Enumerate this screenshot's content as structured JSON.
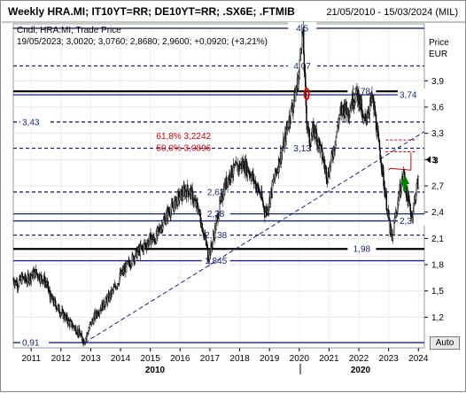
{
  "window": {
    "title": "Weekly HRA.MI; IT10YT=RR; DE10YT=RR; .SX6E; .FTMIB",
    "date_range": "21/05/2010 - 15/03/2024 (MIL)"
  },
  "legend": {
    "series_label": "Cndl; HRA.MI; Trade Price",
    "ohlc_readout": "19/05/2023; 3,0020; 3,0760; 2,8680; 2,9600; +0,0920; (+3,21%)"
  },
  "axis": {
    "y_title_1": "Price",
    "y_title_2": "EUR",
    "y_ticks": [
      "1,2",
      "1,5",
      "1,8",
      "2,1",
      "2,4",
      "2,7",
      "3",
      "3,3",
      "3,6",
      "3,9"
    ],
    "x_ticks": [
      "2011",
      "2012",
      "2013",
      "2014",
      "2015",
      "2016",
      "2017",
      "2018",
      "2019",
      "2020",
      "2021",
      "2022",
      "2023",
      "2024"
    ],
    "x_major_1": "2010",
    "x_major_2": "2020",
    "auto_label": "Auto",
    "last_price_marker": "3"
  },
  "colors": {
    "candles": "#000000",
    "level_lines": "#1a237e",
    "fib_labels": "#cc0000",
    "up_arrow": "#008000",
    "down_marker": "#dd0000",
    "resistance_box": "#cc0000"
  },
  "chart_data": {
    "type": "candlestick",
    "title": "Weekly HRA.MI; IT10YT=RR; DE10YT=RR; .SX6E; .FTMIB",
    "ylabel": "Price EUR",
    "ylim": [
      0.85,
      4.55
    ],
    "xlim": [
      2010.4,
      2024.2
    ],
    "close_path": [
      [
        2010.4,
        1.63
      ],
      [
        2010.55,
        1.58
      ],
      [
        2010.7,
        1.65
      ],
      [
        2010.85,
        1.62
      ],
      [
        2011.0,
        1.68
      ],
      [
        2011.15,
        1.71
      ],
      [
        2011.3,
        1.66
      ],
      [
        2011.45,
        1.62
      ],
      [
        2011.55,
        1.55
      ],
      [
        2011.65,
        1.42
      ],
      [
        2011.8,
        1.35
      ],
      [
        2011.95,
        1.28
      ],
      [
        2012.1,
        1.22
      ],
      [
        2012.25,
        1.15
      ],
      [
        2012.4,
        1.1
      ],
      [
        2012.5,
        1.07
      ],
      [
        2012.6,
        1.02
      ],
      [
        2012.7,
        0.96
      ],
      [
        2012.78,
        0.93
      ],
      [
        2012.85,
        0.98
      ],
      [
        2013.0,
        1.12
      ],
      [
        2013.15,
        1.22
      ],
      [
        2013.3,
        1.3
      ],
      [
        2013.45,
        1.35
      ],
      [
        2013.6,
        1.42
      ],
      [
        2013.75,
        1.5
      ],
      [
        2013.9,
        1.6
      ],
      [
        2014.0,
        1.68
      ],
      [
        2014.15,
        1.75
      ],
      [
        2014.3,
        1.82
      ],
      [
        2014.45,
        1.9
      ],
      [
        2014.6,
        1.95
      ],
      [
        2014.75,
        2.0
      ],
      [
        2014.9,
        2.05
      ],
      [
        2015.0,
        2.1
      ],
      [
        2015.15,
        2.08
      ],
      [
        2015.3,
        2.2
      ],
      [
        2015.45,
        2.3
      ],
      [
        2015.6,
        2.4
      ],
      [
        2015.75,
        2.45
      ],
      [
        2015.9,
        2.55
      ],
      [
        2016.05,
        2.6
      ],
      [
        2016.2,
        2.65
      ],
      [
        2016.35,
        2.63
      ],
      [
        2016.5,
        2.5
      ],
      [
        2016.6,
        2.45
      ],
      [
        2016.7,
        2.3
      ],
      [
        2016.8,
        2.15
      ],
      [
        2016.9,
        2.0
      ],
      [
        2016.95,
        1.88
      ],
      [
        2017.05,
        2.0
      ],
      [
        2017.2,
        2.25
      ],
      [
        2017.35,
        2.5
      ],
      [
        2017.5,
        2.7
      ],
      [
        2017.7,
        2.85
      ],
      [
        2017.9,
        2.9
      ],
      [
        2018.1,
        2.95
      ],
      [
        2018.3,
        2.88
      ],
      [
        2018.5,
        2.75
      ],
      [
        2018.7,
        2.6
      ],
      [
        2018.85,
        2.4
      ],
      [
        2018.95,
        2.45
      ],
      [
        2019.1,
        2.7
      ],
      [
        2019.3,
        2.95
      ],
      [
        2019.5,
        3.2
      ],
      [
        2019.65,
        3.45
      ],
      [
        2019.8,
        3.65
      ],
      [
        2019.9,
        3.8
      ],
      [
        2020.0,
        4.0
      ],
      [
        2020.05,
        4.35
      ],
      [
        2020.12,
        4.45
      ],
      [
        2020.18,
        3.95
      ],
      [
        2020.25,
        3.45
      ],
      [
        2020.35,
        3.2
      ],
      [
        2020.5,
        3.35
      ],
      [
        2020.65,
        3.2
      ],
      [
        2020.8,
        3.0
      ],
      [
        2020.95,
        2.8
      ],
      [
        2021.05,
        2.95
      ],
      [
        2021.2,
        3.2
      ],
      [
        2021.35,
        3.5
      ],
      [
        2021.5,
        3.6
      ],
      [
        2021.65,
        3.55
      ],
      [
        2021.8,
        3.7
      ],
      [
        2021.95,
        3.75
      ],
      [
        2022.05,
        3.65
      ],
      [
        2022.15,
        3.4
      ],
      [
        2022.3,
        3.55
      ],
      [
        2022.45,
        3.7
      ],
      [
        2022.55,
        3.5
      ],
      [
        2022.65,
        3.2
      ],
      [
        2022.75,
        3.0
      ],
      [
        2022.85,
        2.7
      ],
      [
        2022.95,
        2.45
      ],
      [
        2023.05,
        2.2
      ],
      [
        2023.12,
        2.05
      ],
      [
        2023.2,
        2.3
      ],
      [
        2023.35,
        2.6
      ],
      [
        2023.45,
        2.75
      ],
      [
        2023.5,
        2.85
      ],
      [
        2023.58,
        2.65
      ],
      [
        2023.68,
        2.5
      ],
      [
        2023.78,
        2.35
      ],
      [
        2023.88,
        2.55
      ],
      [
        2023.95,
        2.7
      ],
      [
        2024.0,
        2.75
      ]
    ],
    "last_ohlc": {
      "date": "19/05/2023",
      "open": 3.002,
      "high": 3.076,
      "low": 2.868,
      "close": 2.96,
      "change": 0.092,
      "change_pct": 3.21
    },
    "levels": [
      {
        "label": "4,5",
        "value": 4.5,
        "style": "solid",
        "label_pos": "mid"
      },
      {
        "label": "4,07",
        "value": 4.07,
        "style": "dashed",
        "label_pos": "mid"
      },
      {
        "label": "3,78",
        "value": 3.78,
        "style": "thick",
        "label_pos": "right-mid"
      },
      {
        "label": "3,74",
        "value": 3.74,
        "style": "solid",
        "label_pos": "right"
      },
      {
        "label": "3,43",
        "value": 3.43,
        "style": "dashed",
        "label_pos": "left"
      },
      {
        "label": "3,13",
        "value": 3.13,
        "style": "dashed",
        "label_pos": "mid"
      },
      {
        "label": "2,63",
        "value": 2.63,
        "style": "dashed",
        "label_pos": "mid"
      },
      {
        "label": "2,38",
        "value": 2.38,
        "style": "solid",
        "label_pos": "mid"
      },
      {
        "label": "2,3",
        "value": 2.3,
        "style": "solid",
        "label_pos": "right"
      },
      {
        "label": "2,138",
        "value": 2.138,
        "style": "dashed",
        "label_pos": "mid"
      },
      {
        "label": "1,98",
        "value": 1.98,
        "style": "thick",
        "label_pos": "right-mid"
      },
      {
        "label": "1,845",
        "value": 1.845,
        "style": "solid",
        "label_pos": "mid"
      },
      {
        "label": "0,91",
        "value": 0.91,
        "style": "solid",
        "label_pos": "left"
      }
    ],
    "fibonacci": [
      {
        "label": "61,8% 3,2242",
        "value": 3.2242
      },
      {
        "label": "50,0% 3,0896",
        "value": 3.0896
      }
    ],
    "trendline": {
      "from": [
        2012.8,
        0.91
      ],
      "to": [
        2024.2,
        3.32
      ]
    },
    "grid": true,
    "legend_position": "top-left"
  }
}
